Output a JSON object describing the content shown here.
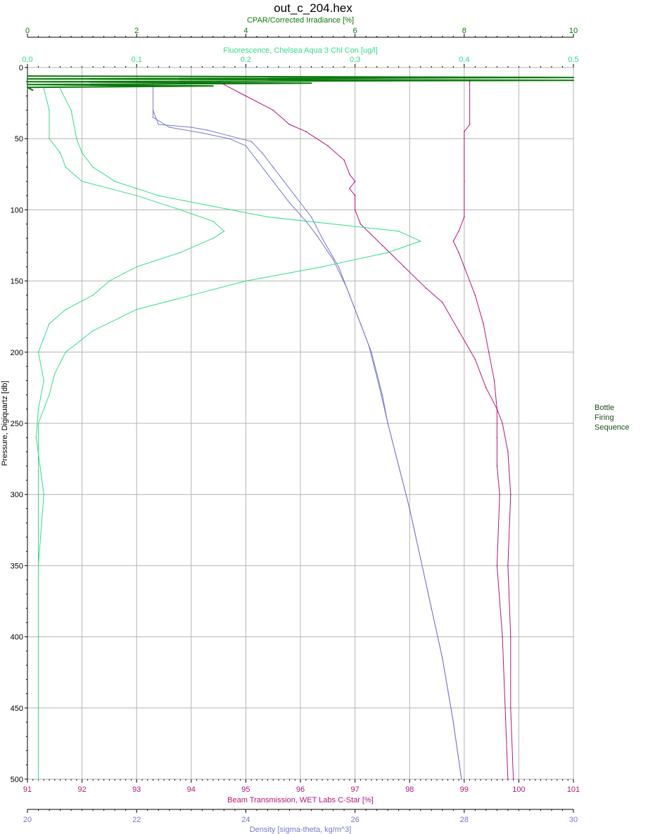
{
  "title": "out_c_204.hex",
  "legend_lines": [
    "Bottle",
    "Firing",
    "Sequence"
  ],
  "colors": {
    "cpar": "#0b7a0b",
    "fluorescence": "#33dd88",
    "beam": "#b8147c",
    "density": "#7777d0",
    "grid": "#b4b4b4",
    "axis": "#000000"
  },
  "chart_data": {
    "type": "line",
    "title": "out_c_204.hex",
    "grid": true,
    "yaxis": {
      "label": "Pressure, Digiquartz [db]",
      "range": [
        0,
        500
      ],
      "inverted": true,
      "ticks": [
        "0",
        "50",
        "100",
        "150",
        "200",
        "250",
        "300",
        "350",
        "400",
        "450",
        "500"
      ]
    },
    "xaxes": [
      {
        "id": "cpar",
        "position": "top-outer",
        "label": "CPAR/Corrected Irradiance [%]",
        "range": [
          0,
          10
        ],
        "ticks": [
          "0",
          "2",
          "4",
          "6",
          "8",
          "10"
        ]
      },
      {
        "id": "fluorescence",
        "position": "top-inner",
        "label": "Fluorescence, Chelsea Aqua 3 Chl Con [ug/l]",
        "range": [
          0,
          0.5
        ],
        "ticks": [
          "0,0",
          "0,1",
          "0,2",
          "0,3",
          "0,4",
          "0,5"
        ]
      },
      {
        "id": "beam",
        "position": "bottom-inner",
        "label": "Beam Transmission, WET Labs C-Star [%]",
        "range": [
          91,
          101
        ],
        "ticks": [
          "91",
          "92",
          "93",
          "94",
          "95",
          "96",
          "97",
          "98",
          "99",
          "100",
          "101"
        ]
      },
      {
        "id": "density",
        "position": "bottom-outer",
        "label": "Density [sigma-theta, kg/m^3]",
        "range": [
          20,
          30
        ],
        "ticks": [
          "20",
          "22",
          "24",
          "26",
          "28",
          "30"
        ]
      }
    ],
    "series": [
      {
        "axis": "density",
        "profiles": [
          {
            "points": [
              [
                22.3,
                10
              ],
              [
                22.3,
                30
              ],
              [
                22.4,
                40
              ],
              [
                23.0,
                42
              ],
              [
                23.3,
                44
              ],
              [
                23.7,
                48
              ],
              [
                24.1,
                52
              ],
              [
                24.3,
                60
              ],
              [
                24.5,
                70
              ],
              [
                24.7,
                80
              ],
              [
                24.9,
                90
              ],
              [
                25.2,
                105
              ],
              [
                25.4,
                120
              ],
              [
                25.7,
                140
              ],
              [
                25.9,
                160
              ],
              [
                26.1,
                180
              ],
              [
                26.3,
                200
              ],
              [
                26.5,
                230
              ],
              [
                26.6,
                250
              ],
              [
                26.8,
                280
              ],
              [
                27.0,
                310
              ],
              [
                27.2,
                345
              ],
              [
                27.4,
                380
              ],
              [
                27.6,
                415
              ],
              [
                27.8,
                460
              ],
              [
                27.95,
                500
              ]
            ]
          },
          {
            "points": [
              [
                22.3,
                10
              ],
              [
                22.3,
                35
              ],
              [
                22.6,
                42
              ],
              [
                23.2,
                46
              ],
              [
                23.7,
                50
              ],
              [
                24.0,
                55
              ],
              [
                24.2,
                65
              ],
              [
                24.5,
                80
              ],
              [
                24.8,
                95
              ],
              [
                25.1,
                108
              ],
              [
                25.3,
                118
              ],
              [
                25.6,
                135
              ],
              [
                25.85,
                155
              ],
              [
                26.05,
                175
              ],
              [
                26.25,
                195
              ],
              [
                26.45,
                225
              ],
              [
                26.6,
                250
              ],
              [
                26.8,
                280
              ],
              [
                27.0,
                310
              ],
              [
                27.2,
                345
              ],
              [
                27.4,
                380
              ],
              [
                27.6,
                415
              ],
              [
                27.8,
                460
              ],
              [
                27.95,
                500
              ]
            ]
          }
        ]
      },
      {
        "axis": "beam",
        "profiles": [
          {
            "points": [
              [
                94.5,
                10
              ],
              [
                95.0,
                20
              ],
              [
                95.5,
                30
              ],
              [
                95.8,
                40
              ],
              [
                96.1,
                45
              ],
              [
                96.5,
                55
              ],
              [
                96.8,
                65
              ],
              [
                96.9,
                75
              ],
              [
                97.0,
                80
              ],
              [
                96.9,
                85
              ],
              [
                97.0,
                90
              ],
              [
                97.0,
                100
              ],
              [
                97.1,
                110
              ],
              [
                97.5,
                125
              ],
              [
                97.9,
                140
              ],
              [
                98.3,
                155
              ],
              [
                98.6,
                165
              ],
              [
                98.9,
                185
              ],
              [
                99.2,
                205
              ],
              [
                99.4,
                225
              ],
              [
                99.6,
                240
              ],
              [
                99.7,
                250
              ],
              [
                99.8,
                270
              ],
              [
                99.85,
                300
              ],
              [
                99.8,
                350
              ],
              [
                99.85,
                400
              ],
              [
                99.85,
                450
              ],
              [
                99.9,
                500
              ]
            ]
          },
          {
            "points": [
              [
                99.1,
                10
              ],
              [
                99.1,
                40
              ],
              [
                99.0,
                45
              ],
              [
                99.0,
                80
              ],
              [
                99.0,
                105
              ],
              [
                98.9,
                115
              ],
              [
                98.8,
                122
              ],
              [
                98.9,
                130
              ],
              [
                99.0,
                140
              ],
              [
                99.2,
                160
              ],
              [
                99.35,
                180
              ],
              [
                99.45,
                200
              ],
              [
                99.55,
                220
              ],
              [
                99.6,
                240
              ],
              [
                99.6,
                260
              ],
              [
                99.6,
                280
              ],
              [
                99.65,
                300
              ],
              [
                99.6,
                350
              ],
              [
                99.7,
                400
              ],
              [
                99.75,
                450
              ],
              [
                99.8,
                500
              ]
            ]
          }
        ]
      },
      {
        "axis": "fluorescence",
        "profiles": [
          {
            "points": [
              [
                0.015,
                15
              ],
              [
                0.02,
                30
              ],
              [
                0.02,
                50
              ],
              [
                0.03,
                60
              ],
              [
                0.035,
                70
              ],
              [
                0.05,
                80
              ],
              [
                0.1,
                90
              ],
              [
                0.14,
                100
              ],
              [
                0.17,
                108
              ],
              [
                0.18,
                115
              ],
              [
                0.17,
                120
              ],
              [
                0.14,
                130
              ],
              [
                0.1,
                140
              ],
              [
                0.075,
                150
              ],
              [
                0.06,
                160
              ],
              [
                0.035,
                170
              ],
              [
                0.02,
                180
              ],
              [
                0.015,
                190
              ],
              [
                0.01,
                200
              ],
              [
                0.015,
                220
              ],
              [
                0.01,
                240
              ],
              [
                0.008,
                260
              ],
              [
                0.015,
                300
              ],
              [
                0.01,
                350
              ],
              [
                0.01,
                400
              ],
              [
                0.01,
                450
              ],
              [
                0.01,
                500
              ]
            ]
          },
          {
            "points": [
              [
                0.03,
                15
              ],
              [
                0.04,
                30
              ],
              [
                0.045,
                50
              ],
              [
                0.05,
                60
              ],
              [
                0.06,
                70
              ],
              [
                0.08,
                80
              ],
              [
                0.12,
                90
              ],
              [
                0.22,
                105
              ],
              [
                0.34,
                115
              ],
              [
                0.36,
                122
              ],
              [
                0.33,
                130
              ],
              [
                0.27,
                140
              ],
              [
                0.2,
                150
              ],
              [
                0.15,
                160
              ],
              [
                0.1,
                170
              ],
              [
                0.06,
                185
              ],
              [
                0.035,
                200
              ],
              [
                0.025,
                215
              ],
              [
                0.02,
                230
              ],
              [
                0.01,
                250
              ],
              [
                0.01,
                300
              ],
              [
                0.01,
                400
              ],
              [
                0.01,
                500
              ]
            ]
          }
        ]
      },
      {
        "axis": "cpar",
        "profiles": [
          {
            "points": [
              [
                0.0,
                6
              ],
              [
                10.0,
                7
              ],
              [
                0.0,
                8
              ],
              [
                10.0,
                9
              ],
              [
                0.0,
                10
              ],
              [
                5.2,
                11
              ],
              [
                0.0,
                12
              ],
              [
                3.4,
                13
              ],
              [
                0.0,
                14
              ],
              [
                0.1,
                16
              ]
            ]
          }
        ]
      }
    ]
  }
}
